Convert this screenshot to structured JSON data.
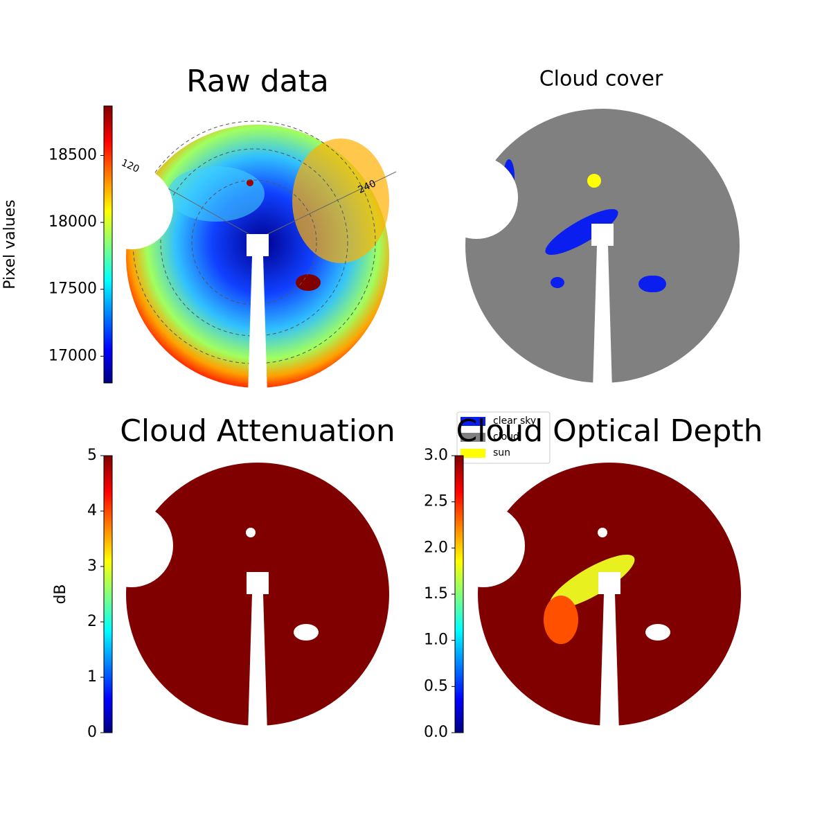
{
  "chart_data": [
    {
      "type": "image",
      "title": "Raw data",
      "colormap": "jet",
      "colorbar_label": "Pixel values",
      "ylim": [
        16800,
        18870
      ],
      "yticks": [
        17000,
        17500,
        18000,
        18500
      ],
      "annotations": [
        "120",
        "240"
      ]
    },
    {
      "type": "image",
      "title": "Cloud cover",
      "legend": [
        {
          "name": "clear sky",
          "color": "#0a1ef0"
        },
        {
          "name": "cloud",
          "color": "#808080"
        },
        {
          "name": "sun",
          "color": "#ffff00"
        }
      ]
    },
    {
      "type": "image",
      "title": "Cloud Attenuation",
      "colormap": "jet",
      "colorbar_label": "dB",
      "ylim": [
        0,
        5
      ],
      "yticks": [
        0,
        1,
        2,
        3,
        4,
        5
      ]
    },
    {
      "type": "image",
      "title": "Cloud Optical Depth",
      "colormap": "jet",
      "ylim": [
        0,
        3
      ],
      "yticks": [
        {
          "value": 0,
          "label": "0.0"
        },
        {
          "value": 0.5,
          "label": "0.5"
        },
        {
          "value": 1,
          "label": "1.0"
        },
        {
          "value": 1.5,
          "label": "1.5"
        },
        {
          "value": 2,
          "label": "2.0"
        },
        {
          "value": 2.5,
          "label": "2.5"
        },
        {
          "value": 3,
          "label": "3.0"
        }
      ]
    }
  ]
}
